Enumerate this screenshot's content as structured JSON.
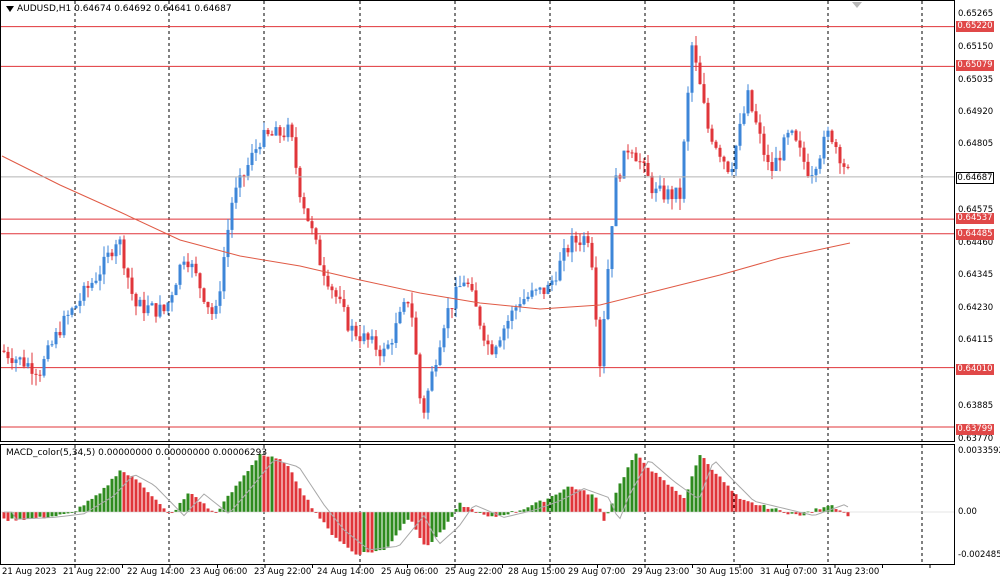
{
  "symbol_line": "AUDUSD,H1  0.64674 0.64692 0.64641 0.64687",
  "macd_line": "MACD_color(5,34,5) 0.00000000 0.00000000 0.00006293",
  "price_labels": [
    "0.65265",
    "0.65150",
    "0.65035",
    "0.64920",
    "0.64805",
    "0.64575",
    "0.64460",
    "0.64345",
    "0.64230",
    "0.64115",
    "0.63885",
    "0.63770"
  ],
  "level_tags": [
    "0.65220",
    "0.65079",
    "0.64537",
    "0.64485",
    "0.64010",
    "0.63799"
  ],
  "current_price": "0.64687",
  "macd_labels": [
    "0.0033592",
    "0.00",
    "-0.0024857"
  ],
  "date_labels": [
    "21 Aug 2023",
    "21 Aug 22:00",
    "22 Aug 14:00",
    "23 Aug 06:00",
    "23 Aug 22:00",
    "24 Aug 14:00",
    "25 Aug 06:00",
    "25 Aug 22:00",
    "28 Aug 15:00",
    "29 Aug 07:00",
    "29 Aug 23:00",
    "30 Aug 15:00",
    "31 Aug 07:00",
    "31 Aug 23:00"
  ],
  "colors": {
    "bull": "#3d86d8",
    "bear": "#e0353a",
    "ma": "#e05a45",
    "level": "#e0353a",
    "macd_up": "#2e8b1e",
    "macd_down": "#e0353a",
    "signal": "#a8a8a8",
    "grid": "#000000"
  }
}
